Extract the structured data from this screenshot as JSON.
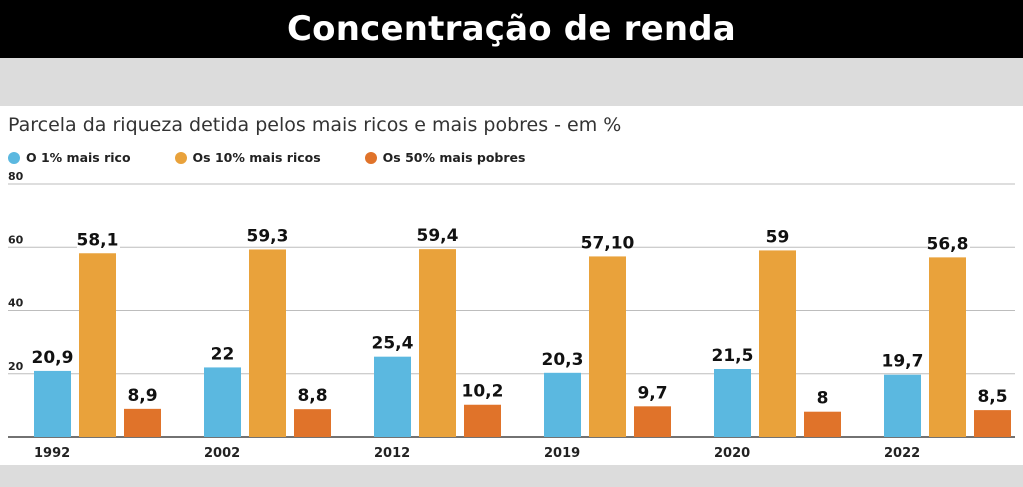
{
  "header": {
    "title": "Concentração de renda"
  },
  "colors": {
    "top1": "#5bb8e0",
    "top10": "#e9a23b",
    "bottom50": "#e0732a"
  },
  "chart_data": {
    "type": "bar",
    "title": "Parcela da riqueza detida pelos mais ricos e mais pobres - em %",
    "xlabel": "",
    "ylabel": "",
    "ylim": [
      0,
      80
    ],
    "yticks": [
      "20",
      "40",
      "60",
      "80"
    ],
    "yticks_values": [
      20,
      40,
      60,
      80
    ],
    "categories": [
      "1992",
      "2002",
      "2012",
      "2019",
      "2020",
      "2022"
    ],
    "series": [
      {
        "name": "O 1% mais rico",
        "values": [
          20.9,
          22,
          25.4,
          20.3,
          21.5,
          19.7
        ],
        "labels": [
          "20,9",
          "22",
          "25,4",
          "20,3",
          "21,5",
          "19,7"
        ]
      },
      {
        "name": "Os 10% mais ricos",
        "values": [
          58.1,
          59.3,
          59.4,
          57.1,
          59,
          56.8
        ],
        "labels": [
          "58,1",
          "59,3",
          "59,4",
          "57,10",
          "59",
          "56,8"
        ]
      },
      {
        "name": "Os 50% mais pobres",
        "values": [
          8.9,
          8.8,
          10.2,
          9.7,
          8,
          8.5
        ],
        "labels": [
          "8,9",
          "8,8",
          "10,2",
          "9,7",
          "8",
          "8,5"
        ]
      }
    ]
  }
}
